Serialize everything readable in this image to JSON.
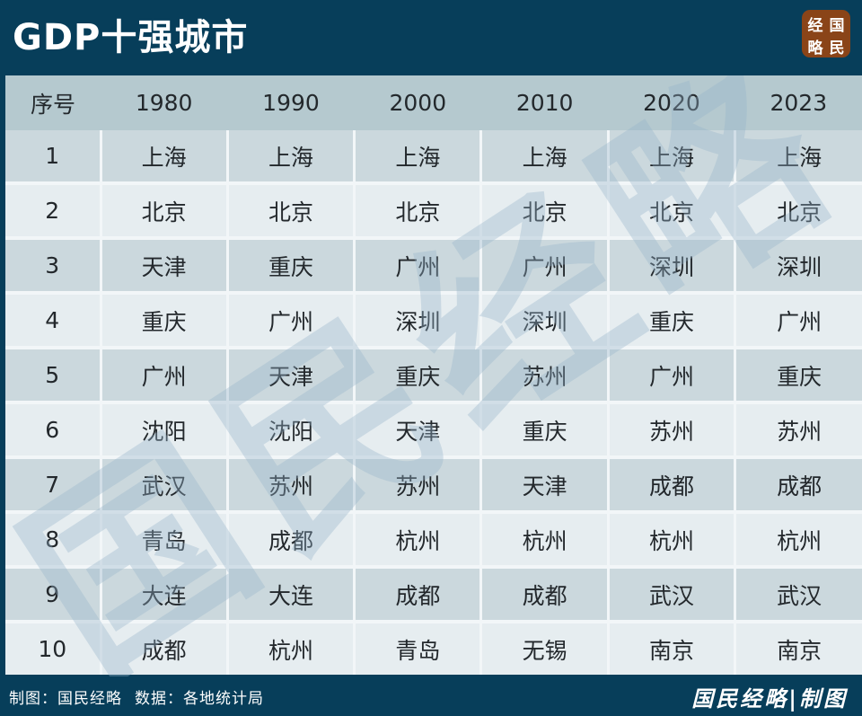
{
  "header": {
    "title": "GDP十强城市"
  },
  "brand": {
    "badge_chars": [
      "经",
      "国",
      "略",
      "民"
    ],
    "badge_color": "#8a4418"
  },
  "watermark": {
    "text": "国民经略"
  },
  "chart_data": {
    "type": "table",
    "title": "GDP十强城市",
    "columns": [
      "序号",
      "1980",
      "1990",
      "2000",
      "2010",
      "2020",
      "2023"
    ],
    "rows": [
      [
        "1",
        "上海",
        "上海",
        "上海",
        "上海",
        "上海",
        "上海"
      ],
      [
        "2",
        "北京",
        "北京",
        "北京",
        "北京",
        "北京",
        "北京"
      ],
      [
        "3",
        "天津",
        "重庆",
        "广州",
        "广州",
        "深圳",
        "深圳"
      ],
      [
        "4",
        "重庆",
        "广州",
        "深圳",
        "深圳",
        "重庆",
        "广州"
      ],
      [
        "5",
        "广州",
        "天津",
        "重庆",
        "苏州",
        "广州",
        "重庆"
      ],
      [
        "6",
        "沈阳",
        "沈阳",
        "天津",
        "重庆",
        "苏州",
        "苏州"
      ],
      [
        "7",
        "武汉",
        "苏州",
        "苏州",
        "天津",
        "成都",
        "成都"
      ],
      [
        "8",
        "青岛",
        "成都",
        "杭州",
        "杭州",
        "杭州",
        "杭州"
      ],
      [
        "9",
        "大连",
        "大连",
        "成都",
        "成都",
        "武汉",
        "武汉"
      ],
      [
        "10",
        "成都",
        "杭州",
        "青岛",
        "无锡",
        "南京",
        "南京"
      ]
    ]
  },
  "footer": {
    "credit": "制图：国民经略",
    "source": "数据：各地统计局",
    "brand": "国民经略|制图"
  },
  "colors": {
    "navy": "#073e5a",
    "header_row": "#b5c9cf",
    "row_odd": "#cbd8dd",
    "row_even": "#e6edf0",
    "badge": "#8a4418",
    "text": "#23282c"
  }
}
